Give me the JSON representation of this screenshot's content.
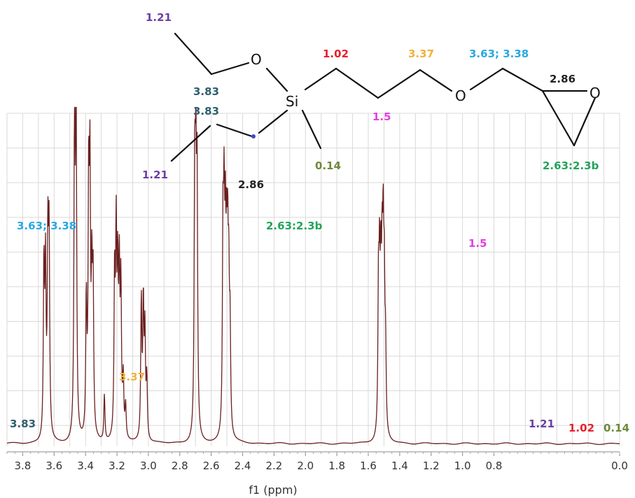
{
  "chart_data": {
    "type": "line",
    "xlabel": "f1 (ppm)",
    "xlim": [
      3.9,
      0.0
    ],
    "x_reversed": true,
    "ylim": [
      0,
      100
    ],
    "grid": true,
    "tick_labels": [
      "3.8",
      "3.6",
      "3.4",
      "3.2",
      "3.0",
      "2.8",
      "2.6",
      "2.4",
      "2.2",
      "2.0",
      "1.8",
      "1.6",
      "1.4",
      "1.2",
      "1.0",
      "0.8",
      "0.0"
    ],
    "tick_values": [
      3.8,
      3.6,
      3.4,
      3.2,
      3.0,
      2.8,
      2.6,
      2.4,
      2.2,
      2.0,
      1.8,
      1.6,
      1.4,
      1.2,
      1.0,
      0.8,
      0.0
    ],
    "peaks": [
      {
        "x": 3.665,
        "y": 52
      },
      {
        "x": 3.655,
        "y": 50
      },
      {
        "x": 3.64,
        "y": 57
      },
      {
        "x": 3.632,
        "y": 58
      },
      {
        "x": 3.47,
        "y": 100
      },
      {
        "x": 3.46,
        "y": 100
      },
      {
        "x": 3.395,
        "y": 40
      },
      {
        "x": 3.38,
        "y": 73
      },
      {
        "x": 3.372,
        "y": 74
      },
      {
        "x": 3.36,
        "y": 44
      },
      {
        "x": 3.352,
        "y": 44
      },
      {
        "x": 3.28,
        "y": 14
      },
      {
        "x": 3.215,
        "y": 48
      },
      {
        "x": 3.205,
        "y": 58
      },
      {
        "x": 3.195,
        "y": 45
      },
      {
        "x": 3.185,
        "y": 46
      },
      {
        "x": 3.175,
        "y": 44
      },
      {
        "x": 3.16,
        "y": 17
      },
      {
        "x": 3.145,
        "y": 10
      },
      {
        "x": 3.045,
        "y": 42
      },
      {
        "x": 3.032,
        "y": 40
      },
      {
        "x": 3.022,
        "y": 31
      },
      {
        "x": 3.01,
        "y": 18
      },
      {
        "x": 2.705,
        "y": 73
      },
      {
        "x": 2.698,
        "y": 74
      },
      {
        "x": 2.69,
        "y": 73
      },
      {
        "x": 2.525,
        "y": 57
      },
      {
        "x": 2.518,
        "y": 58
      },
      {
        "x": 2.51,
        "y": 52
      },
      {
        "x": 2.502,
        "y": 45
      },
      {
        "x": 2.495,
        "y": 47
      },
      {
        "x": 2.488,
        "y": 40
      },
      {
        "x": 2.48,
        "y": 30
      },
      {
        "x": 1.535,
        "y": 43
      },
      {
        "x": 1.528,
        "y": 44
      },
      {
        "x": 1.52,
        "y": 40
      },
      {
        "x": 1.512,
        "y": 43
      },
      {
        "x": 1.505,
        "y": 51
      },
      {
        "x": 1.498,
        "y": 40
      },
      {
        "x": 1.49,
        "y": 24
      }
    ],
    "series_color": "#6b1f1f",
    "annotations": [
      {
        "text": "3.63; 3.38",
        "color": "#29a8e0"
      },
      {
        "text": "3.37",
        "color": "#f0b23a"
      },
      {
        "text": "3.83",
        "color": "#2f5f6e"
      },
      {
        "text": "2.86",
        "color": "#222222"
      },
      {
        "text": "2.63:2.3b",
        "color": "#22a35a"
      },
      {
        "text": "1.5",
        "color": "#e040e0"
      },
      {
        "text": "1.21",
        "color": "#6a3fa3"
      },
      {
        "text": "1.02",
        "color": "#e8202a"
      },
      {
        "text": "0.14",
        "color": "#6f8a3a"
      }
    ]
  },
  "structure": {
    "atoms": {
      "o_left": "O",
      "si": "Si",
      "o_mid": "O",
      "o_epoxide": "O"
    },
    "labels": [
      {
        "text": "1.21",
        "color": "#6a3fa3"
      },
      {
        "text": "3.83",
        "color": "#2f5f6e"
      },
      {
        "text": "3.83",
        "color": "#2f5f6e"
      },
      {
        "text": "1.21",
        "color": "#6a3fa3"
      },
      {
        "text": "1.02",
        "color": "#e8202a"
      },
      {
        "text": "1.5",
        "color": "#e040e0"
      },
      {
        "text": "3.37",
        "color": "#f0b23a"
      },
      {
        "text": "3.63; 3.38",
        "color": "#29a8e0"
      },
      {
        "text": "2.86",
        "color": "#222222"
      },
      {
        "text": "0.14",
        "color": "#6f8a3a"
      },
      {
        "text": "2.63:2.3b",
        "color": "#22a35a"
      }
    ]
  }
}
